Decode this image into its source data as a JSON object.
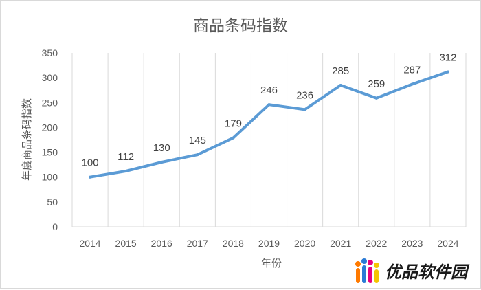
{
  "chart_data": {
    "type": "line",
    "title": "商品条码指数",
    "xlabel": "年份",
    "ylabel": "年度商品条码指数",
    "categories": [
      "2014",
      "2015",
      "2016",
      "2017",
      "2018",
      "2019",
      "2020",
      "2021",
      "2022",
      "2023",
      "2024"
    ],
    "series": [
      {
        "values": [
          100,
          112,
          130,
          145,
          179,
          246,
          236,
          285,
          259,
          287,
          312
        ]
      }
    ],
    "ylim": [
      0,
      350
    ],
    "yticks": [
      0,
      50,
      100,
      150,
      200,
      250,
      300,
      350
    ],
    "grid": "vertical",
    "data_labels": true,
    "line_color": "#5b9bd5"
  },
  "watermark": {
    "text": "优品软件园"
  }
}
